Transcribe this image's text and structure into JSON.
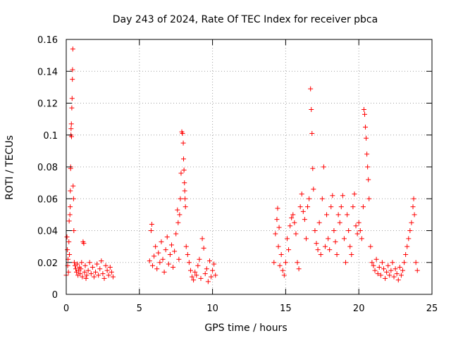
{
  "chart_data": {
    "type": "scatter",
    "title": "Day 243 of 2024, Rate Of TEC Index for receiver pbca",
    "xlabel": "GPS time / hours",
    "ylabel": "ROTI / TECUs",
    "xlim": [
      0,
      25
    ],
    "ylim": [
      0,
      0.16
    ],
    "x_ticks": [
      "0",
      "5",
      "10",
      "15",
      "20",
      "25"
    ],
    "y_ticks": [
      "0",
      "0.02",
      "0.04",
      "0.06",
      "0.08",
      "0.1",
      "0.12",
      "0.14",
      "0.16"
    ],
    "grid": true,
    "marker": "+",
    "series": [
      {
        "name": "ROTI",
        "color": "#ff0000",
        "points": [
          [
            0.0,
            0.012
          ],
          [
            0.05,
            0.036
          ],
          [
            0.08,
            0.028
          ],
          [
            0.1,
            0.018
          ],
          [
            0.12,
            0.022
          ],
          [
            0.15,
            0.014
          ],
          [
            0.18,
            0.033
          ],
          [
            0.2,
            0.046
          ],
          [
            0.22,
            0.025
          ],
          [
            0.25,
            0.05
          ],
          [
            0.27,
            0.055
          ],
          [
            0.28,
            0.065
          ],
          [
            0.3,
            0.08
          ],
          [
            0.3,
            0.079
          ],
          [
            0.32,
            0.1
          ],
          [
            0.33,
            0.104
          ],
          [
            0.35,
            0.107
          ],
          [
            0.36,
            0.099
          ],
          [
            0.38,
            0.117
          ],
          [
            0.4,
            0.123
          ],
          [
            0.42,
            0.135
          ],
          [
            0.43,
            0.141
          ],
          [
            0.45,
            0.154
          ],
          [
            0.47,
            0.068
          ],
          [
            0.5,
            0.06
          ],
          [
            0.52,
            0.04
          ],
          [
            0.55,
            0.02
          ],
          [
            0.6,
            0.018
          ],
          [
            0.65,
            0.016
          ],
          [
            0.7,
            0.014
          ],
          [
            0.75,
            0.019
          ],
          [
            0.8,
            0.012
          ],
          [
            0.85,
            0.015
          ],
          [
            0.9,
            0.017
          ],
          [
            0.95,
            0.013
          ],
          [
            1.0,
            0.016
          ],
          [
            1.05,
            0.02
          ],
          [
            1.1,
            0.011
          ],
          [
            1.15,
            0.033
          ],
          [
            1.2,
            0.032
          ],
          [
            1.25,
            0.014
          ],
          [
            1.3,
            0.018
          ],
          [
            1.35,
            0.01
          ],
          [
            1.4,
            0.012
          ],
          [
            1.5,
            0.015
          ],
          [
            1.6,
            0.02
          ],
          [
            1.7,
            0.013
          ],
          [
            1.8,
            0.017
          ],
          [
            1.9,
            0.011
          ],
          [
            2.0,
            0.014
          ],
          [
            2.1,
            0.019
          ],
          [
            2.2,
            0.012
          ],
          [
            2.3,
            0.016
          ],
          [
            2.4,
            0.021
          ],
          [
            2.5,
            0.013
          ],
          [
            2.6,
            0.01
          ],
          [
            2.7,
            0.018
          ],
          [
            2.8,
            0.015
          ],
          [
            2.9,
            0.012
          ],
          [
            3.0,
            0.017
          ],
          [
            3.1,
            0.014
          ],
          [
            3.2,
            0.011
          ],
          [
            5.7,
            0.021
          ],
          [
            5.8,
            0.04
          ],
          [
            5.85,
            0.044
          ],
          [
            5.9,
            0.018
          ],
          [
            6.0,
            0.024
          ],
          [
            6.1,
            0.03
          ],
          [
            6.2,
            0.016
          ],
          [
            6.3,
            0.026
          ],
          [
            6.4,
            0.02
          ],
          [
            6.5,
            0.033
          ],
          [
            6.6,
            0.022
          ],
          [
            6.7,
            0.014
          ],
          [
            6.8,
            0.028
          ],
          [
            6.9,
            0.036
          ],
          [
            7.0,
            0.019
          ],
          [
            7.1,
            0.025
          ],
          [
            7.2,
            0.031
          ],
          [
            7.3,
            0.017
          ],
          [
            7.4,
            0.027
          ],
          [
            7.5,
            0.038
          ],
          [
            7.6,
            0.053
          ],
          [
            7.65,
            0.045
          ],
          [
            7.7,
            0.022
          ],
          [
            7.75,
            0.05
          ],
          [
            7.8,
            0.06
          ],
          [
            7.85,
            0.076
          ],
          [
            7.9,
            0.102
          ],
          [
            7.95,
            0.101
          ],
          [
            8.0,
            0.095
          ],
          [
            8.02,
            0.085
          ],
          [
            8.05,
            0.078
          ],
          [
            8.08,
            0.07
          ],
          [
            8.1,
            0.065
          ],
          [
            8.12,
            0.06
          ],
          [
            8.15,
            0.055
          ],
          [
            8.2,
            0.03
          ],
          [
            8.3,
            0.025
          ],
          [
            8.4,
            0.02
          ],
          [
            8.5,
            0.015
          ],
          [
            8.6,
            0.011
          ],
          [
            8.7,
            0.009
          ],
          [
            8.8,
            0.014
          ],
          [
            8.9,
            0.012
          ],
          [
            9.0,
            0.018
          ],
          [
            9.1,
            0.022
          ],
          [
            9.2,
            0.01
          ],
          [
            9.3,
            0.035
          ],
          [
            9.4,
            0.029
          ],
          [
            9.5,
            0.013
          ],
          [
            9.6,
            0.016
          ],
          [
            9.7,
            0.008
          ],
          [
            9.8,
            0.021
          ],
          [
            9.9,
            0.011
          ],
          [
            10.0,
            0.015
          ],
          [
            10.1,
            0.019
          ],
          [
            10.2,
            0.012
          ],
          [
            14.2,
            0.02
          ],
          [
            14.3,
            0.038
          ],
          [
            14.4,
            0.047
          ],
          [
            14.45,
            0.054
          ],
          [
            14.5,
            0.03
          ],
          [
            14.55,
            0.042
          ],
          [
            14.6,
            0.018
          ],
          [
            14.7,
            0.025
          ],
          [
            14.8,
            0.015
          ],
          [
            14.9,
            0.012
          ],
          [
            15.0,
            0.02
          ],
          [
            15.1,
            0.035
          ],
          [
            15.2,
            0.028
          ],
          [
            15.3,
            0.043
          ],
          [
            15.4,
            0.048
          ],
          [
            15.5,
            0.05
          ],
          [
            15.6,
            0.045
          ],
          [
            15.7,
            0.038
          ],
          [
            15.8,
            0.02
          ],
          [
            15.9,
            0.016
          ],
          [
            16.0,
            0.055
          ],
          [
            16.1,
            0.063
          ],
          [
            16.2,
            0.052
          ],
          [
            16.3,
            0.047
          ],
          [
            16.4,
            0.035
          ],
          [
            16.5,
            0.055
          ],
          [
            16.6,
            0.06
          ],
          [
            16.7,
            0.129
          ],
          [
            16.75,
            0.116
          ],
          [
            16.8,
            0.101
          ],
          [
            16.85,
            0.079
          ],
          [
            16.9,
            0.066
          ],
          [
            17.0,
            0.04
          ],
          [
            17.1,
            0.032
          ],
          [
            17.2,
            0.028
          ],
          [
            17.3,
            0.045
          ],
          [
            17.4,
            0.025
          ],
          [
            17.5,
            0.06
          ],
          [
            17.6,
            0.08
          ],
          [
            17.7,
            0.03
          ],
          [
            17.8,
            0.05
          ],
          [
            17.9,
            0.035
          ],
          [
            18.0,
            0.028
          ],
          [
            18.1,
            0.055
          ],
          [
            18.2,
            0.062
          ],
          [
            18.3,
            0.04
          ],
          [
            18.4,
            0.033
          ],
          [
            18.5,
            0.025
          ],
          [
            18.6,
            0.05
          ],
          [
            18.7,
            0.045
          ],
          [
            18.8,
            0.055
          ],
          [
            18.9,
            0.062
          ],
          [
            19.0,
            0.035
          ],
          [
            19.1,
            0.02
          ],
          [
            19.2,
            0.05
          ],
          [
            19.3,
            0.04
          ],
          [
            19.4,
            0.03
          ],
          [
            19.5,
            0.025
          ],
          [
            19.6,
            0.055
          ],
          [
            19.7,
            0.063
          ],
          [
            19.8,
            0.043
          ],
          [
            19.9,
            0.038
          ],
          [
            20.0,
            0.045
          ],
          [
            20.1,
            0.04
          ],
          [
            20.2,
            0.035
          ],
          [
            20.3,
            0.055
          ],
          [
            20.35,
            0.116
          ],
          [
            20.4,
            0.113
          ],
          [
            20.45,
            0.105
          ],
          [
            20.5,
            0.098
          ],
          [
            20.55,
            0.088
          ],
          [
            20.6,
            0.08
          ],
          [
            20.65,
            0.072
          ],
          [
            20.7,
            0.06
          ],
          [
            20.8,
            0.03
          ],
          [
            20.9,
            0.02
          ],
          [
            21.0,
            0.018
          ],
          [
            21.1,
            0.015
          ],
          [
            21.2,
            0.022
          ],
          [
            21.3,
            0.013
          ],
          [
            21.4,
            0.017
          ],
          [
            21.5,
            0.012
          ],
          [
            21.6,
            0.02
          ],
          [
            21.7,
            0.016
          ],
          [
            21.8,
            0.01
          ],
          [
            21.9,
            0.014
          ],
          [
            22.0,
            0.018
          ],
          [
            22.1,
            0.012
          ],
          [
            22.2,
            0.015
          ],
          [
            22.3,
            0.02
          ],
          [
            22.4,
            0.011
          ],
          [
            22.5,
            0.016
          ],
          [
            22.6,
            0.013
          ],
          [
            22.7,
            0.009
          ],
          [
            22.8,
            0.017
          ],
          [
            22.9,
            0.012
          ],
          [
            23.0,
            0.015
          ],
          [
            23.1,
            0.02
          ],
          [
            23.2,
            0.025
          ],
          [
            23.3,
            0.03
          ],
          [
            23.4,
            0.035
          ],
          [
            23.5,
            0.04
          ],
          [
            23.6,
            0.045
          ],
          [
            23.7,
            0.055
          ],
          [
            23.75,
            0.06
          ],
          [
            23.8,
            0.05
          ],
          [
            23.9,
            0.02
          ],
          [
            24.0,
            0.015
          ]
        ]
      }
    ]
  }
}
